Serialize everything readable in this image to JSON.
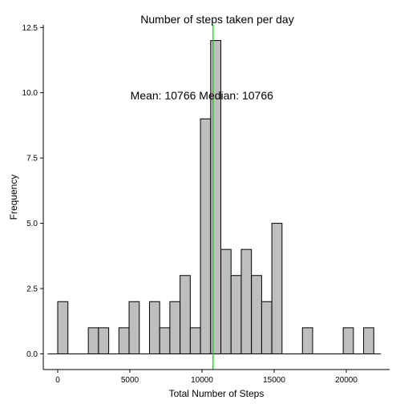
{
  "chart_data": {
    "type": "bar",
    "title": "Number of steps taken per day",
    "xlabel": "Total Number of Steps",
    "ylabel": "Frequency",
    "bin_width": 706.7,
    "bins": [
      {
        "x_start": 0,
        "value": 2
      },
      {
        "x_start": 2120,
        "value": 1
      },
      {
        "x_start": 2827,
        "value": 1
      },
      {
        "x_start": 4240,
        "value": 1
      },
      {
        "x_start": 4947,
        "value": 2
      },
      {
        "x_start": 6360,
        "value": 2
      },
      {
        "x_start": 7067,
        "value": 1
      },
      {
        "x_start": 7773,
        "value": 2
      },
      {
        "x_start": 8480,
        "value": 3
      },
      {
        "x_start": 9187,
        "value": 1
      },
      {
        "x_start": 9893,
        "value": 9
      },
      {
        "x_start": 10600,
        "value": 12
      },
      {
        "x_start": 11307,
        "value": 4
      },
      {
        "x_start": 12013,
        "value": 3
      },
      {
        "x_start": 12720,
        "value": 4
      },
      {
        "x_start": 13427,
        "value": 3
      },
      {
        "x_start": 14133,
        "value": 2
      },
      {
        "x_start": 14840,
        "value": 5
      },
      {
        "x_start": 16960,
        "value": 1
      },
      {
        "x_start": 19787,
        "value": 1
      },
      {
        "x_start": 21200,
        "value": 1
      }
    ],
    "baseline": {
      "x_start": -700,
      "x_end": 22400
    },
    "xlim": [
      -1000,
      23000
    ],
    "ylim": [
      -0.6,
      12.6
    ],
    "x_ticks": [
      0,
      5000,
      10000,
      15000,
      20000
    ],
    "x_tick_labels": [
      "0",
      "5000",
      "10000",
      "15000",
      "20000"
    ],
    "y_ticks": [
      0,
      2.5,
      5,
      7.5,
      10,
      12.5
    ],
    "y_tick_labels": [
      "0.0",
      "2.5",
      "5.0",
      "7.5",
      "10.0",
      "12.5"
    ],
    "mean": 10766,
    "median": 10766,
    "annotation": {
      "text": "Mean: 10766  Median: 10766",
      "x": 10766,
      "y": 9.9
    },
    "colors": {
      "bar_fill": "#bebebe",
      "bar_stroke": "#000000",
      "mean_line": "#00cc00"
    },
    "grid": false
  }
}
